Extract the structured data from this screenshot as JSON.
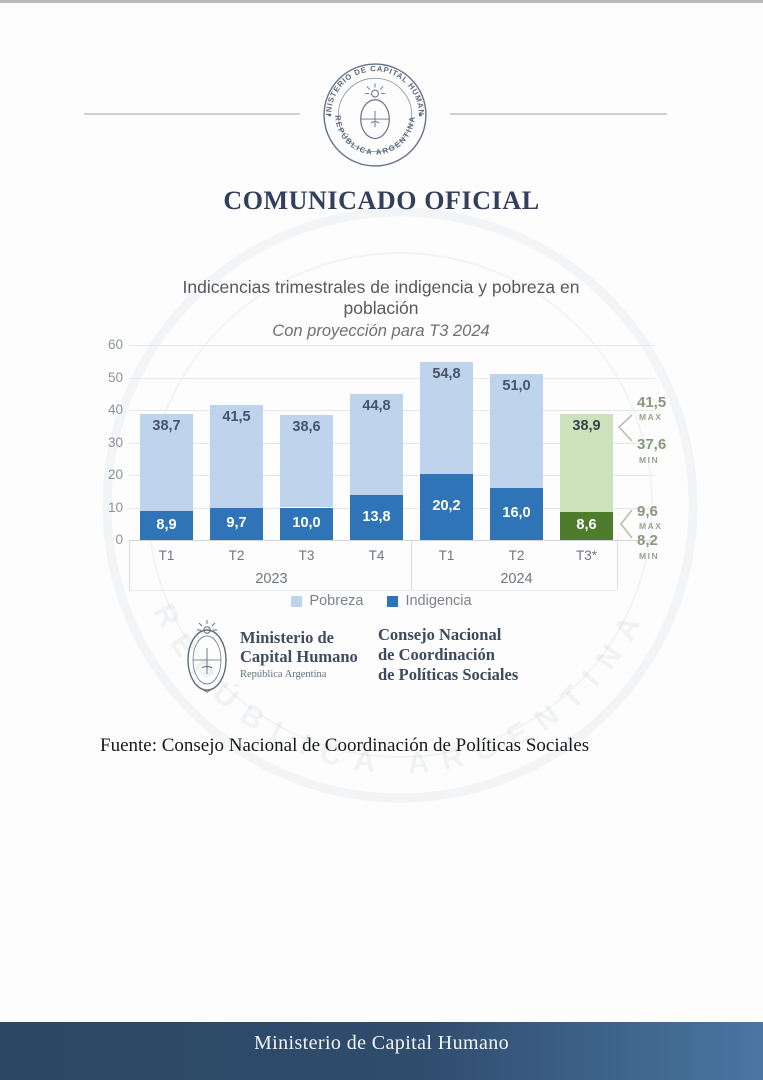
{
  "page": {
    "heading": "COMUNICADO OFICIAL",
    "source_note": "Fuente: Consejo Nacional de Coordinación de Políticas Sociales",
    "footer": "Ministerio de Capital Humano"
  },
  "seal": {
    "top_text": "MINISTERIO DE CAPITAL HUMANO",
    "bottom_text": "REPÚBLICA ARGENTINA"
  },
  "watermark": {
    "text": "REPÚBLICA ARGENTINA"
  },
  "logos": {
    "ministry": {
      "line1": "Ministerio de",
      "line2": "Capital Humano",
      "subline": "República Argentina"
    },
    "council": {
      "line1": "Consejo Nacional",
      "line2": "de Coordinación",
      "line3": "de Políticas Sociales"
    }
  },
  "chart_data": {
    "type": "bar",
    "stacked": true,
    "title": "Indicencias trimestrales de indigencia y pobreza en población",
    "subtitle": "Con proyección para T3 2024",
    "categories": [
      "T1",
      "T2",
      "T3",
      "T4",
      "T1",
      "T2",
      "T3*"
    ],
    "year_groups": [
      {
        "label": "2023",
        "bars": [
          0,
          3
        ]
      },
      {
        "label": "2024",
        "bars": [
          4,
          6
        ]
      }
    ],
    "series": [
      {
        "name": "Pobreza",
        "values": [
          38.7,
          41.5,
          38.6,
          44.8,
          54.8,
          51.0,
          38.9
        ],
        "labels": [
          "38,7",
          "41,5",
          "38,6",
          "44,8",
          "54,8",
          "51,0",
          "38,9"
        ],
        "color": "#bdd4ec",
        "projection_color": "#cde2ba"
      },
      {
        "name": "Indigencia",
        "values": [
          8.9,
          9.7,
          10.0,
          13.8,
          20.2,
          16.0,
          8.6
        ],
        "labels": [
          "8,9",
          "9,7",
          "10,0",
          "13,8",
          "20,2",
          "16,0",
          "8,6"
        ],
        "color": "#2e74b6",
        "projection_color": "#4e7c2d"
      }
    ],
    "projection_index": 6,
    "ylim": [
      0,
      60
    ],
    "yticks": [
      0,
      10,
      20,
      30,
      40,
      50,
      60
    ],
    "grid": true,
    "legend_position": "bottom",
    "legend": [
      {
        "label": "Pobreza",
        "color": "#bdd4ec"
      },
      {
        "label": "Indigencia",
        "color": "#2e74b6"
      }
    ],
    "annotations": [
      {
        "target": "pobreza-projection",
        "max": {
          "value": "41,5",
          "tag": "MAX"
        },
        "min": {
          "value": "37,6",
          "tag": "MIN"
        }
      },
      {
        "target": "indigencia-projection",
        "max": {
          "value": "9,6",
          "tag": "MAX"
        },
        "min": {
          "value": "8,2",
          "tag": "MIN"
        }
      }
    ],
    "annotation_color": "#87987a"
  }
}
